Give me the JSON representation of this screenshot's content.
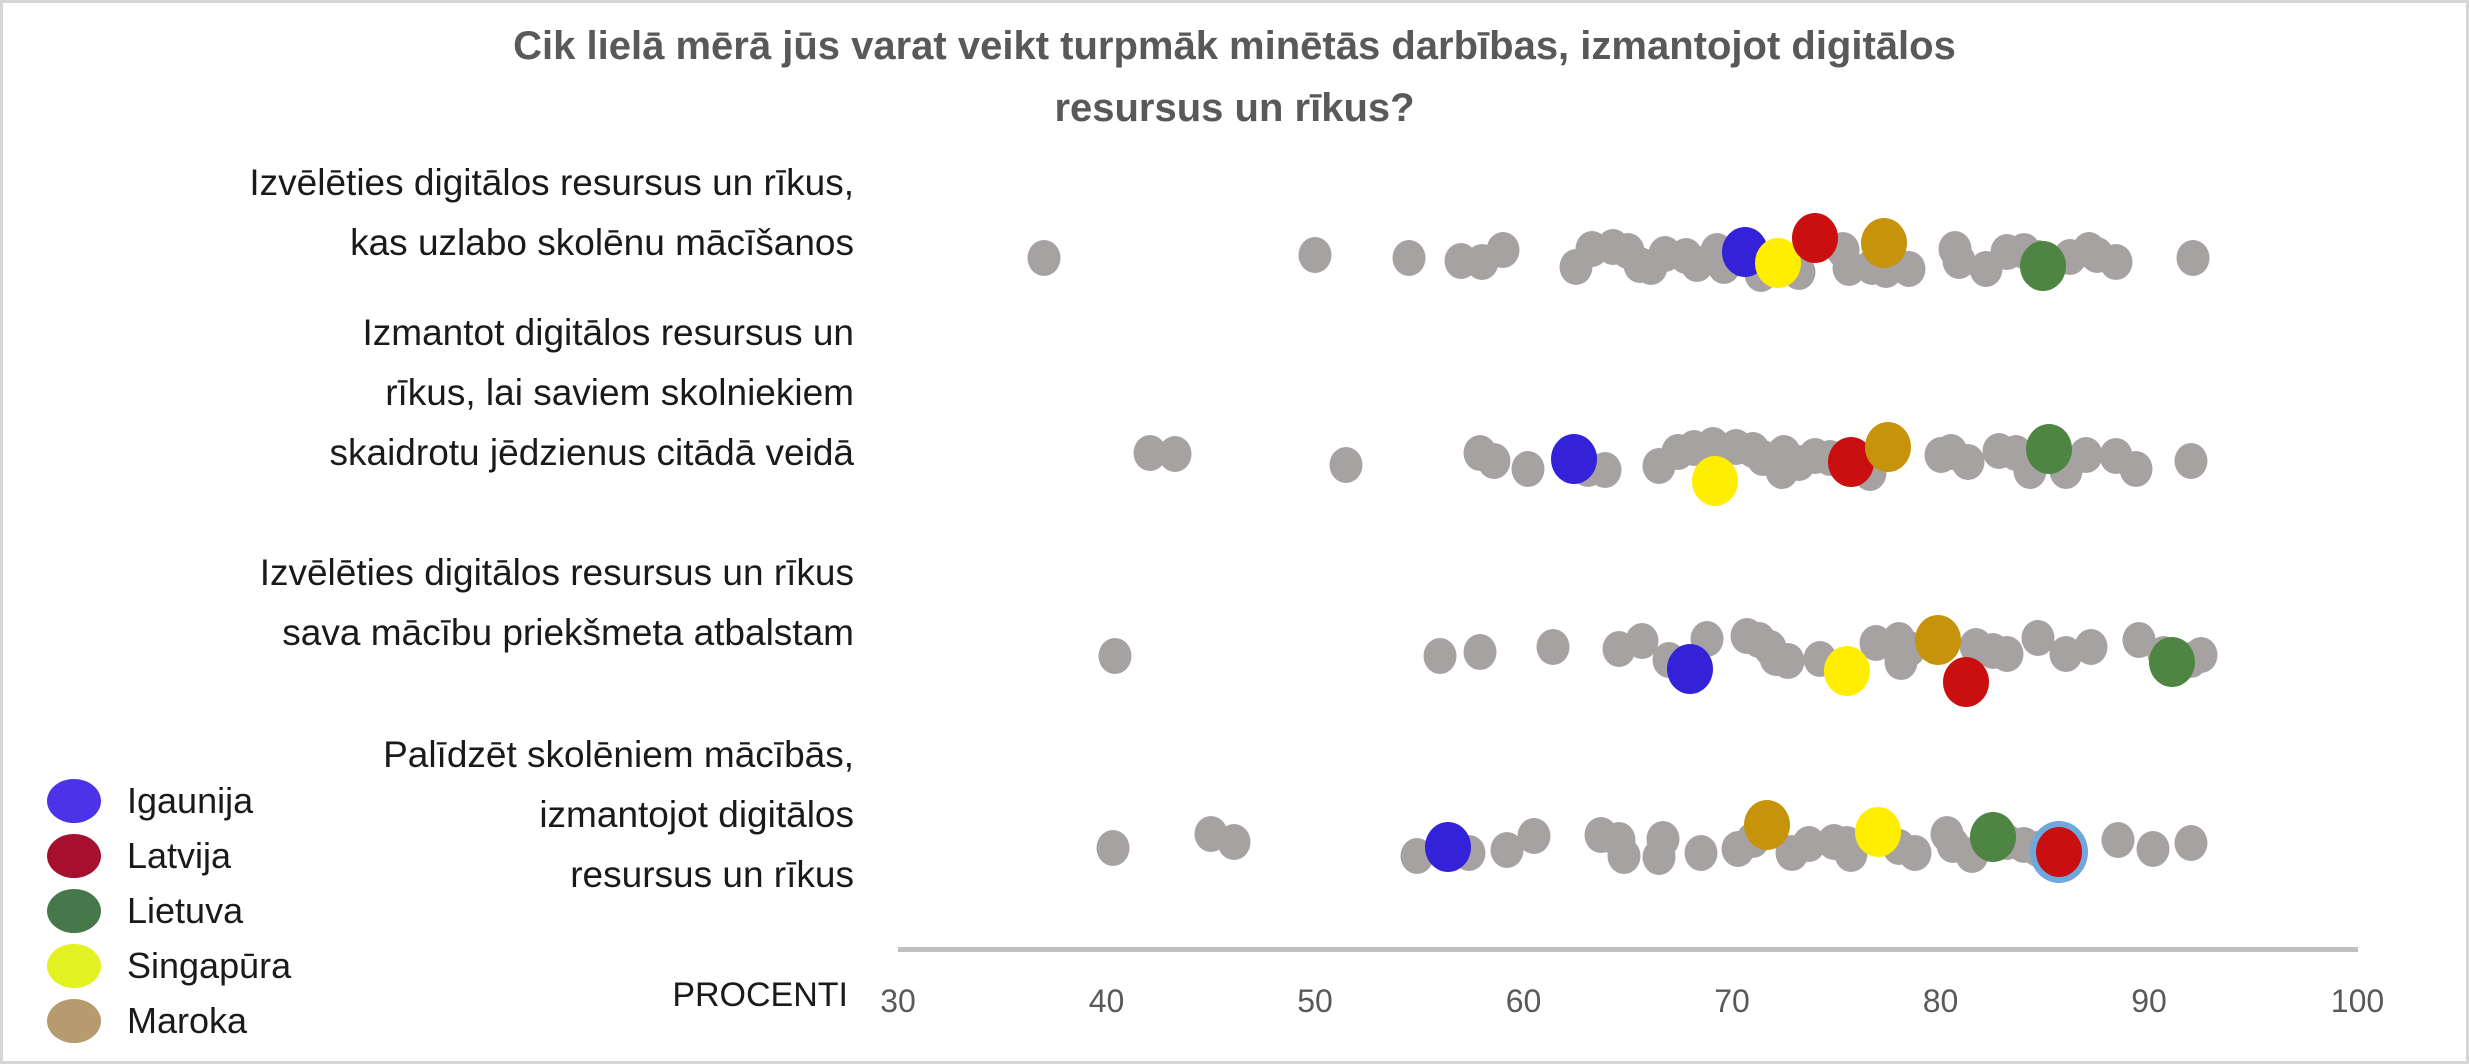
{
  "window": {
    "background": "#ffffff",
    "frame_border_color": "#d6d6d6"
  },
  "title": {
    "text": "Cik lielā mērā jūs varat veikt turpmāk minētās darbības, izmantojot digitālos resursus un rīkus?",
    "lines": [
      "Cik lielā mērā jūs varat veikt turpmāk minētās darbības, izmantojot digitālos",
      "resursus un rīkus?"
    ],
    "color": "#595959"
  },
  "axis": {
    "label": "PROCENTI",
    "ticks": [
      "30",
      "40",
      "50",
      "60",
      "70",
      "80",
      "90",
      "100"
    ],
    "min": 30,
    "max": 100,
    "line_color": "#bfbfbf",
    "tick_color": "#595959"
  },
  "legend": {
    "items": [
      {
        "name": "Igaunija",
        "swatch_color": "#4c33e8"
      },
      {
        "name": "Latvija",
        "swatch_color": "#a60f2e"
      },
      {
        "name": "Lietuva",
        "swatch_color": "#47784b"
      },
      {
        "name": "Singapūra",
        "swatch_color": "#e1f220"
      },
      {
        "name": "Maroka",
        "swatch_color": "#b59b6e"
      }
    ]
  },
  "colors": {
    "other_countries_dot": "#a6a2a2",
    "markers": {
      "Igaunija": "#3322d8",
      "Latvija": "#c90f0f",
      "Lietuva": "#4e8543",
      "Singapūra": "#ffee00",
      "Maroka": "#c7930a"
    },
    "highlight_ring": "#6fa8dc"
  },
  "chart_data": {
    "type": "scatter",
    "title": "Cik lielā mērā jūs varat veikt turpmāk minētās darbības, izmantojot digitālos resursus un rīkus?",
    "xlabel": "PROCENTI",
    "xlim": [
      30,
      100
    ],
    "x_ticks": [
      30,
      40,
      50,
      60,
      70,
      80,
      90,
      100
    ],
    "grid": false,
    "legend_position": "bottom-left",
    "categories": [
      "Izvēlēties digitālos resursus un rīkus, kas uzlabo skolēnu mācīšanos",
      "Izmantot digitālos resursus un rīkus, lai saviem skolniekiem skaidrotu jēdzienus citādā veidā",
      "Izvēlēties digitālos resursus un rīkus sava mācību priekšmeta atbalstam",
      "Palīdzēt skolēniem mācībās, izmantojot digitālos resursus un rīkus"
    ],
    "series": [
      {
        "name": "Igaunija",
        "values": [
          70.6,
          62.4,
          68.0,
          56.4
        ]
      },
      {
        "name": "Latvija",
        "values": [
          74.0,
          75.7,
          81.2,
          85.7
        ]
      },
      {
        "name": "Lietuva",
        "values": [
          84.9,
          85.2,
          91.1,
          82.5
        ]
      },
      {
        "name": "Singapūra",
        "values": [
          72.2,
          69.2,
          75.5,
          77.0
        ]
      },
      {
        "name": "Maroka",
        "values": [
          77.3,
          77.5,
          79.9,
          71.7
        ]
      }
    ],
    "rows": [
      {
        "category": "Izvēlēties digitālos resursus un rīkus, kas uzlabo skolēnu mācīšanos",
        "label_lines": [
          "Izvēlēties digitālos resursus un rīkus,",
          "kas uzlabo skolēnu mācīšanos"
        ],
        "highlights": [
          {
            "country": "Igaunija",
            "value": 70.6,
            "dy": -6
          },
          {
            "country": "Singapūra",
            "value": 72.2,
            "dy": 5
          },
          {
            "country": "Latvija",
            "value": 74.0,
            "dy": -20
          },
          {
            "country": "Maroka",
            "value": 77.3,
            "dy": -15
          },
          {
            "country": "Lietuva",
            "value": 84.9,
            "dy": 8
          }
        ],
        "others": [
          [
            37,
            0
          ],
          [
            50,
            -3
          ],
          [
            54.5,
            0
          ],
          [
            57,
            3
          ],
          [
            58,
            4
          ],
          [
            59,
            -8
          ],
          [
            62.5,
            9
          ],
          [
            63.3,
            -9
          ],
          [
            64.3,
            -11
          ],
          [
            65,
            -7
          ],
          [
            65.6,
            7
          ],
          [
            66.1,
            9
          ],
          [
            66.8,
            -4
          ],
          [
            67.8,
            -2
          ],
          [
            68.3,
            6
          ],
          [
            69.3,
            -7
          ],
          [
            69.6,
            8
          ],
          [
            71.4,
            16
          ],
          [
            73.2,
            14
          ],
          [
            75.3,
            -8
          ],
          [
            75.6,
            10
          ],
          [
            76.7,
            9
          ],
          [
            77.4,
            12
          ],
          [
            78.5,
            11
          ],
          [
            80.7,
            -9
          ],
          [
            80.9,
            3
          ],
          [
            82.2,
            11
          ],
          [
            83.2,
            -6
          ],
          [
            84,
            -7
          ],
          [
            84.7,
            0
          ],
          [
            86.2,
            -1
          ],
          [
            87.1,
            -8
          ],
          [
            87.5,
            -3
          ],
          [
            88.4,
            4
          ],
          [
            92.1,
            0
          ]
        ]
      },
      {
        "category": "Izmantot digitālos resursus un rīkus, lai saviem skolniekiem skaidrotu jēdzienus citādā veidā",
        "label_lines": [
          "Izmantot digitālos resursus un",
          "rīkus, lai saviem skolniekiem",
          "skaidrotu jēdzienus citādā veidā"
        ],
        "highlights": [
          {
            "country": "Igaunija",
            "value": 62.4,
            "dy": -2
          },
          {
            "country": "Singapūra",
            "value": 69.2,
            "dy": 20
          },
          {
            "country": "Latvija",
            "value": 75.7,
            "dy": 1
          },
          {
            "country": "Maroka",
            "value": 77.5,
            "dy": -14
          },
          {
            "country": "Lietuva",
            "value": 85.2,
            "dy": -12
          }
        ],
        "others": [
          [
            42.1,
            -8
          ],
          [
            43.3,
            -7
          ],
          [
            51.5,
            4
          ],
          [
            57.9,
            -8
          ],
          [
            58.6,
            0
          ],
          [
            60.2,
            8
          ],
          [
            63.1,
            8
          ],
          [
            63.9,
            9
          ],
          [
            66.5,
            5
          ],
          [
            67.4,
            -9
          ],
          [
            68.2,
            -13
          ],
          [
            69.1,
            -16
          ],
          [
            70.2,
            -14
          ],
          [
            71,
            -11
          ],
          [
            71.5,
            -3
          ],
          [
            72.4,
            10
          ],
          [
            72.5,
            -8
          ],
          [
            73.2,
            2
          ],
          [
            74,
            -5
          ],
          [
            74.7,
            -3
          ],
          [
            76.6,
            12
          ],
          [
            77.2,
            -8
          ],
          [
            80,
            -6
          ],
          [
            80.5,
            -9
          ],
          [
            81.3,
            1
          ],
          [
            82.8,
            -10
          ],
          [
            83.6,
            -8
          ],
          [
            84.3,
            10
          ],
          [
            86,
            10
          ],
          [
            87,
            -6
          ],
          [
            88.4,
            -5
          ],
          [
            89.4,
            8
          ],
          [
            92,
            0
          ]
        ]
      },
      {
        "category": "Izvēlēties digitālos resursus un rīkus sava mācību priekšmeta atbalstam",
        "label_lines": [
          "Izvēlēties digitālos resursus un rīkus",
          "sava mācību priekšmeta atbalstam"
        ],
        "highlights": [
          {
            "country": "Igaunija",
            "value": 68.0,
            "dy": 16
          },
          {
            "country": "Singapūra",
            "value": 75.5,
            "dy": 18
          },
          {
            "country": "Maroka",
            "value": 79.9,
            "dy": -13
          },
          {
            "country": "Latvija",
            "value": 81.2,
            "dy": 29
          },
          {
            "country": "Lietuva",
            "value": 91.1,
            "dy": 9
          }
        ],
        "others": [
          [
            40.4,
            3
          ],
          [
            56,
            3
          ],
          [
            57.9,
            -1
          ],
          [
            61.4,
            -6
          ],
          [
            64.6,
            -4
          ],
          [
            65.7,
            -12
          ],
          [
            67,
            7
          ],
          [
            68.8,
            -14
          ],
          [
            70.7,
            -17
          ],
          [
            71.3,
            -13
          ],
          [
            71.8,
            -5
          ],
          [
            72.1,
            5
          ],
          [
            72.7,
            8
          ],
          [
            74.2,
            6
          ],
          [
            76.9,
            -10
          ],
          [
            78,
            -13
          ],
          [
            78.1,
            9
          ],
          [
            78.5,
            -4
          ],
          [
            81.7,
            -7
          ],
          [
            82.5,
            -2
          ],
          [
            83.2,
            1
          ],
          [
            84.7,
            -15
          ],
          [
            86,
            1
          ],
          [
            87.2,
            -6
          ],
          [
            89.5,
            -13
          ],
          [
            90.7,
            1
          ],
          [
            92,
            7
          ],
          [
            92.5,
            2
          ]
        ]
      },
      {
        "category": "Palīdzēt skolēniem mācībās, izmantojot digitālos resursus un rīkus",
        "label_lines": [
          "Palīdzēt skolēniem mācībās,",
          "izmantojot digitālos",
          "resursus un rīkus"
        ],
        "highlights": [
          {
            "country": "Igaunija",
            "value": 56.4,
            "dy": 0
          },
          {
            "country": "Maroka",
            "value": 71.7,
            "dy": -22
          },
          {
            "country": "Singapūra",
            "value": 77.0,
            "dy": -15
          },
          {
            "country": "Lietuva",
            "value": 82.5,
            "dy": -10
          },
          {
            "country": "Latvija",
            "value": 85.7,
            "dy": 5,
            "ring": true
          }
        ],
        "others": [
          [
            40.3,
            1
          ],
          [
            45,
            -13
          ],
          [
            46.1,
            -5
          ],
          [
            54.9,
            9
          ],
          [
            57.4,
            6
          ],
          [
            59.2,
            3
          ],
          [
            60.5,
            -11
          ],
          [
            63.7,
            -12
          ],
          [
            64.6,
            -7
          ],
          [
            64.8,
            9
          ],
          [
            66.5,
            10
          ],
          [
            66.7,
            -8
          ],
          [
            68.5,
            6
          ],
          [
            70.3,
            2
          ],
          [
            71,
            -7
          ],
          [
            72.9,
            6
          ],
          [
            73.7,
            -3
          ],
          [
            74.9,
            -5
          ],
          [
            75.5,
            -3
          ],
          [
            75.7,
            7
          ],
          [
            78,
            0
          ],
          [
            78.8,
            6
          ],
          [
            80.3,
            -13
          ],
          [
            80.6,
            -2
          ],
          [
            81.5,
            8
          ],
          [
            83.2,
            -5
          ],
          [
            84,
            -2
          ],
          [
            84.7,
            2
          ],
          [
            86.2,
            10
          ],
          [
            88.5,
            -7
          ],
          [
            90.2,
            2
          ],
          [
            92,
            -4
          ]
        ]
      }
    ]
  }
}
